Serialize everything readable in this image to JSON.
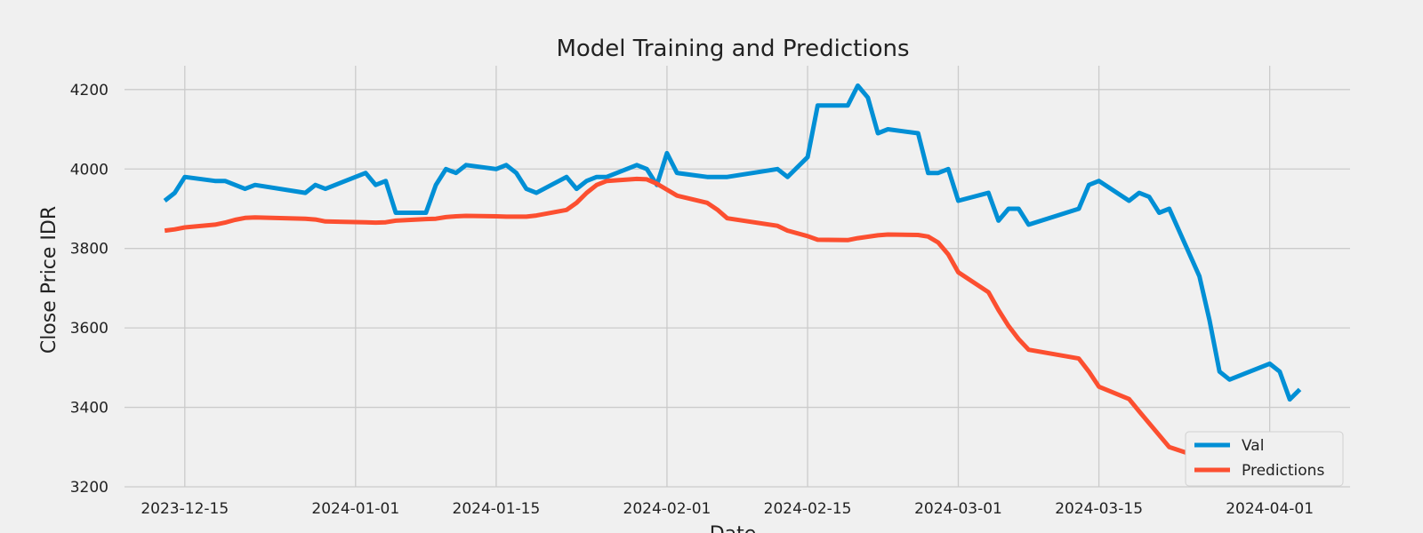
{
  "chart_data": {
    "type": "line",
    "title": "Model Training and Predictions",
    "xlabel": "Date",
    "ylabel": "Close Price IDR",
    "ylim": [
      3200,
      4260
    ],
    "xlim": [
      "2023-12-09",
      "2024-04-09"
    ],
    "x_ticks": [
      "2023-12-15",
      "2024-01-01",
      "2024-01-15",
      "2024-02-01",
      "2024-02-15",
      "2024-03-01",
      "2024-03-15",
      "2024-04-01"
    ],
    "y_ticks": [
      3200,
      3400,
      3600,
      3800,
      4000,
      4200
    ],
    "grid": true,
    "legend_position": "lower-right",
    "series": [
      {
        "name": "Val",
        "color": "#008fd5",
        "points": [
          [
            "2023-12-13",
            3920
          ],
          [
            "2023-12-14",
            3940
          ],
          [
            "2023-12-15",
            3980
          ],
          [
            "2023-12-18",
            3970
          ],
          [
            "2023-12-19",
            3970
          ],
          [
            "2023-12-21",
            3950
          ],
          [
            "2023-12-22",
            3960
          ],
          [
            "2023-12-27",
            3940
          ],
          [
            "2023-12-28",
            3960
          ],
          [
            "2023-12-29",
            3950
          ],
          [
            "2024-01-02",
            3990
          ],
          [
            "2024-01-03",
            3960
          ],
          [
            "2024-01-04",
            3970
          ],
          [
            "2024-01-05",
            3890
          ],
          [
            "2024-01-08",
            3890
          ],
          [
            "2024-01-09",
            3960
          ],
          [
            "2024-01-10",
            4000
          ],
          [
            "2024-01-11",
            3990
          ],
          [
            "2024-01-12",
            4010
          ],
          [
            "2024-01-15",
            4000
          ],
          [
            "2024-01-16",
            4010
          ],
          [
            "2024-01-17",
            3990
          ],
          [
            "2024-01-18",
            3950
          ],
          [
            "2024-01-19",
            3940
          ],
          [
            "2024-01-22",
            3980
          ],
          [
            "2024-01-23",
            3950
          ],
          [
            "2024-01-24",
            3970
          ],
          [
            "2024-01-25",
            3980
          ],
          [
            "2024-01-26",
            3980
          ],
          [
            "2024-01-29",
            4010
          ],
          [
            "2024-01-30",
            4000
          ],
          [
            "2024-01-31",
            3960
          ],
          [
            "2024-02-01",
            4040
          ],
          [
            "2024-02-02",
            3990
          ],
          [
            "2024-02-05",
            3980
          ],
          [
            "2024-02-07",
            3980
          ],
          [
            "2024-02-12",
            4000
          ],
          [
            "2024-02-13",
            3980
          ],
          [
            "2024-02-15",
            4030
          ],
          [
            "2024-02-16",
            4160
          ],
          [
            "2024-02-19",
            4160
          ],
          [
            "2024-02-20",
            4210
          ],
          [
            "2024-02-21",
            4180
          ],
          [
            "2024-02-22",
            4090
          ],
          [
            "2024-02-23",
            4100
          ],
          [
            "2024-02-26",
            4090
          ],
          [
            "2024-02-27",
            3990
          ],
          [
            "2024-02-28",
            3990
          ],
          [
            "2024-02-29",
            4000
          ],
          [
            "2024-03-01",
            3920
          ],
          [
            "2024-03-04",
            3940
          ],
          [
            "2024-03-05",
            3870
          ],
          [
            "2024-03-06",
            3900
          ],
          [
            "2024-03-07",
            3900
          ],
          [
            "2024-03-08",
            3860
          ],
          [
            "2024-03-13",
            3900
          ],
          [
            "2024-03-14",
            3960
          ],
          [
            "2024-03-15",
            3970
          ],
          [
            "2024-03-18",
            3920
          ],
          [
            "2024-03-19",
            3940
          ],
          [
            "2024-03-20",
            3930
          ],
          [
            "2024-03-21",
            3890
          ],
          [
            "2024-03-22",
            3900
          ],
          [
            "2024-03-25",
            3730
          ],
          [
            "2024-03-26",
            3620
          ],
          [
            "2024-03-27",
            3490
          ],
          [
            "2024-03-28",
            3470
          ],
          [
            "2024-04-01",
            3510
          ],
          [
            "2024-04-02",
            3490
          ],
          [
            "2024-04-03",
            3420
          ],
          [
            "2024-04-04",
            3445
          ]
        ]
      },
      {
        "name": "Predictions",
        "color": "#fc4f30",
        "points": [
          [
            "2023-12-13",
            3845
          ],
          [
            "2023-12-14",
            3848
          ],
          [
            "2023-12-15",
            3853
          ],
          [
            "2023-12-18",
            3860
          ],
          [
            "2023-12-19",
            3865
          ],
          [
            "2023-12-20",
            3872
          ],
          [
            "2023-12-21",
            3877
          ],
          [
            "2023-12-22",
            3878
          ],
          [
            "2023-12-27",
            3875
          ],
          [
            "2023-12-28",
            3873
          ],
          [
            "2023-12-29",
            3868
          ],
          [
            "2024-01-02",
            3866
          ],
          [
            "2024-01-03",
            3865
          ],
          [
            "2024-01-04",
            3866
          ],
          [
            "2024-01-05",
            3870
          ],
          [
            "2024-01-08",
            3874
          ],
          [
            "2024-01-09",
            3875
          ],
          [
            "2024-01-10",
            3879
          ],
          [
            "2024-01-11",
            3881
          ],
          [
            "2024-01-12",
            3882
          ],
          [
            "2024-01-15",
            3881
          ],
          [
            "2024-01-16",
            3880
          ],
          [
            "2024-01-18",
            3880
          ],
          [
            "2024-01-19",
            3883
          ],
          [
            "2024-01-22",
            3897
          ],
          [
            "2024-01-23",
            3915
          ],
          [
            "2024-01-24",
            3940
          ],
          [
            "2024-01-25",
            3960
          ],
          [
            "2024-01-26",
            3970
          ],
          [
            "2024-01-29",
            3975
          ],
          [
            "2024-01-30",
            3974
          ],
          [
            "2024-01-31",
            3963
          ],
          [
            "2024-02-01",
            3948
          ],
          [
            "2024-02-02",
            3933
          ],
          [
            "2024-02-05",
            3915
          ],
          [
            "2024-02-06",
            3898
          ],
          [
            "2024-02-07",
            3876
          ],
          [
            "2024-02-12",
            3857
          ],
          [
            "2024-02-13",
            3845
          ],
          [
            "2024-02-15",
            3831
          ],
          [
            "2024-02-16",
            3822
          ],
          [
            "2024-02-19",
            3821
          ],
          [
            "2024-02-20",
            3826
          ],
          [
            "2024-02-22",
            3833
          ],
          [
            "2024-02-23",
            3835
          ],
          [
            "2024-02-26",
            3834
          ],
          [
            "2024-02-27",
            3830
          ],
          [
            "2024-02-28",
            3815
          ],
          [
            "2024-02-29",
            3785
          ],
          [
            "2024-03-01",
            3740
          ],
          [
            "2024-03-04",
            3690
          ],
          [
            "2024-03-05",
            3645
          ],
          [
            "2024-03-06",
            3605
          ],
          [
            "2024-03-07",
            3572
          ],
          [
            "2024-03-08",
            3545
          ],
          [
            "2024-03-13",
            3523
          ],
          [
            "2024-03-14",
            3490
          ],
          [
            "2024-03-15",
            3452
          ],
          [
            "2024-03-18",
            3421
          ],
          [
            "2024-03-19",
            3390
          ],
          [
            "2024-03-22",
            3300
          ],
          [
            "2024-03-25",
            3275
          ],
          [
            "2024-03-26",
            3252
          ],
          [
            "2024-03-27",
            3233
          ],
          [
            "2024-03-28",
            3226
          ],
          [
            "2024-04-01",
            3226
          ],
          [
            "2024-04-02",
            3232
          ],
          [
            "2024-04-03",
            3235
          ],
          [
            "2024-04-04",
            3236
          ]
        ]
      }
    ]
  }
}
